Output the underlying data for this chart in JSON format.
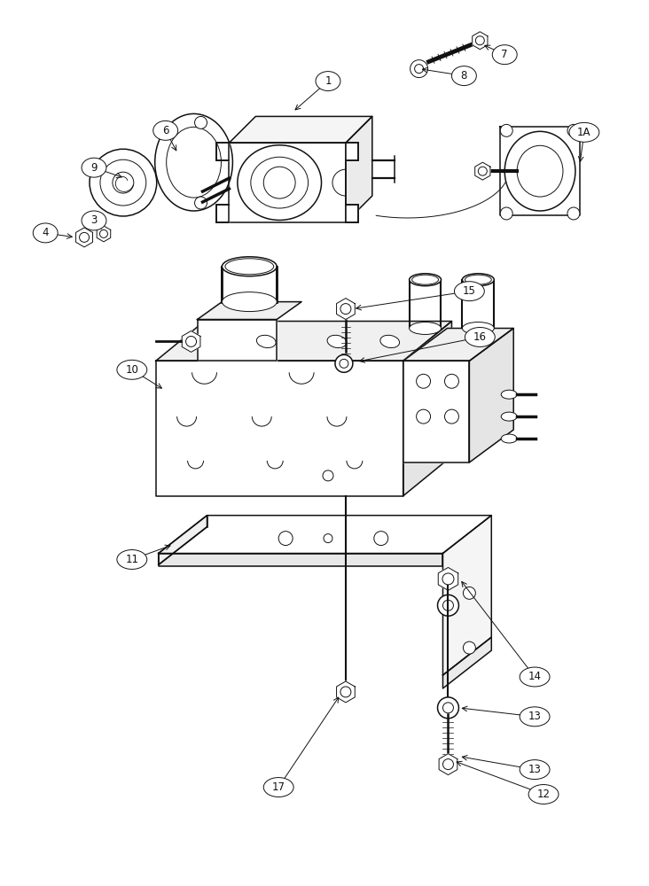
{
  "bg_color": "#ffffff",
  "line_color": "#111111",
  "lw": 1.1,
  "lw_thin": 0.7,
  "lw_thick": 1.6,
  "fig_width": 7.32,
  "fig_height": 10.0
}
